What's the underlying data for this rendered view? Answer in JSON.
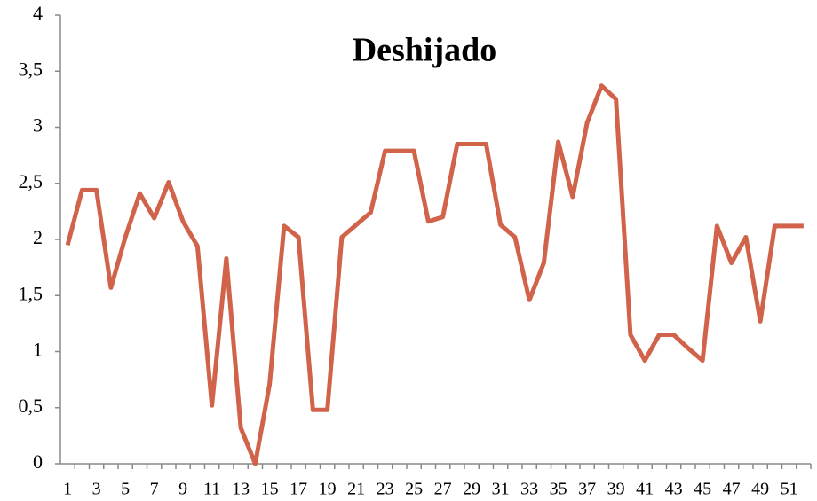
{
  "chart_data": {
    "type": "line",
    "title": "Deshijado",
    "categories": [
      1,
      null,
      3,
      null,
      5,
      null,
      7,
      null,
      9,
      null,
      11,
      null,
      13,
      null,
      15,
      null,
      17,
      null,
      19,
      null,
      21,
      null,
      23,
      null,
      25,
      null,
      27,
      null,
      29,
      null,
      31,
      null,
      33,
      null,
      35,
      null,
      37,
      null,
      39,
      null,
      41,
      null,
      43,
      null,
      45,
      null,
      47,
      null,
      49,
      null,
      51,
      null
    ],
    "values": [
      1.95,
      2.44,
      2.44,
      1.57,
      2.02,
      2.41,
      2.19,
      2.51,
      2.16,
      1.94,
      0.52,
      1.83,
      0.32,
      0,
      0.71,
      2.12,
      2.02,
      0.48,
      0.48,
      2.02,
      2.13,
      2.24,
      2.79,
      2.79,
      2.79,
      2.16,
      2.2,
      2.85,
      2.85,
      2.85,
      2.13,
      2.02,
      1.46,
      1.79,
      2.87,
      2.38,
      3.04,
      3.37,
      3.25,
      1.15,
      0.92,
      1.15,
      1.15,
      1.03,
      0.92,
      2.12,
      1.79,
      2.02,
      1.27,
      2.12,
      2.12,
      2.12
    ],
    "color": "#d0634a",
    "ylim": [
      0,
      4
    ],
    "yticks": [
      0,
      {
        "value": 0.5,
        "label": "0,5"
      },
      1,
      {
        "value": 1.5,
        "label": "1,5"
      },
      2,
      {
        "value": 2.5,
        "label": "2,5"
      },
      3,
      {
        "value": 3.5,
        "label": "3,5"
      },
      4
    ],
    "grid": false
  }
}
